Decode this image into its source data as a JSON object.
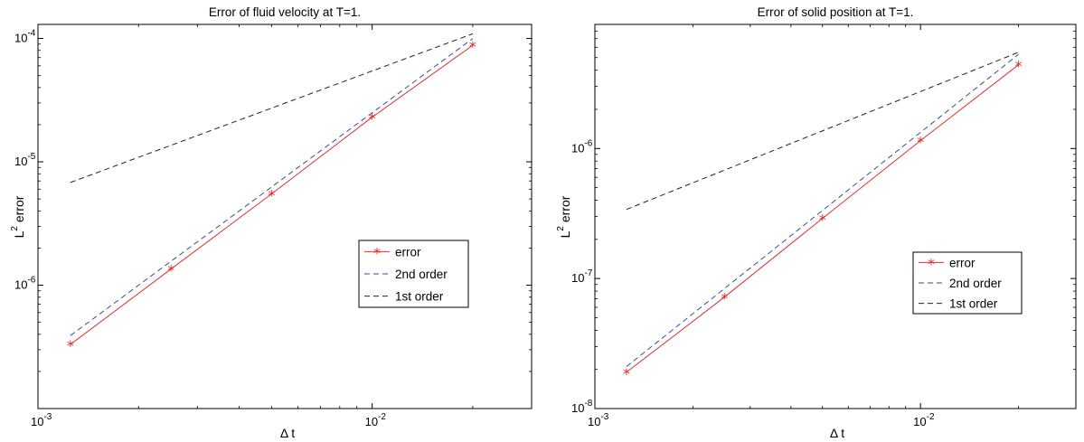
{
  "chart_data": [
    {
      "type": "line",
      "title": "Error of fluid velocity at T=1.",
      "xlabel": "Δ t",
      "ylabel": "L2 error",
      "ylabel_base": "L",
      "ylabel_sup": "2",
      "ylabel_rest": " error",
      "xscale": "log",
      "yscale": "log",
      "xlim": [
        0.001,
        0.03
      ],
      "ylim": [
        1e-07,
        0.00013
      ],
      "grid": false,
      "legend_position": "center-right",
      "xticks": [
        {
          "value": 0.001,
          "base": "10",
          "exp": "-3"
        },
        {
          "value": 0.01,
          "base": "10",
          "exp": "-2"
        }
      ],
      "yticks": [
        {
          "value": 1e-06,
          "base": "10",
          "exp": "-6"
        },
        {
          "value": 1e-05,
          "base": "10",
          "exp": "-5"
        },
        {
          "value": 0.0001,
          "base": "10",
          "exp": "-4"
        }
      ],
      "series": [
        {
          "name": "error",
          "color": "#e03030",
          "style": "solid",
          "marker": "*",
          "x": [
            0.00125,
            0.0025,
            0.005,
            0.01,
            0.02
          ],
          "y": [
            3.3e-07,
            1.35e-06,
            5.5e-06,
            2.3e-05,
            8.8e-05
          ]
        },
        {
          "name": "2nd order",
          "color": "#3a4a9a",
          "style": "dashed",
          "marker": "",
          "x": [
            0.00125,
            0.02
          ],
          "y": [
            3.9e-07,
            0.0001
          ]
        },
        {
          "name": "1st order",
          "color": "#222222",
          "style": "dashed",
          "marker": "",
          "x": [
            0.00125,
            0.02
          ],
          "y": [
            6.8e-06,
            0.000109
          ]
        }
      ]
    },
    {
      "type": "line",
      "title": "Error of solid position at T=1.",
      "xlabel": "Δ t",
      "ylabel": "L2 error",
      "ylabel_base": "L",
      "ylabel_sup": "2",
      "ylabel_rest": " error",
      "xscale": "log",
      "yscale": "log",
      "xlim": [
        0.001,
        0.03
      ],
      "ylim": [
        1e-08,
        9e-06
      ],
      "grid": false,
      "legend_position": "center-right",
      "xticks": [
        {
          "value": 0.001,
          "base": "10",
          "exp": "-3"
        },
        {
          "value": 0.01,
          "base": "10",
          "exp": "-2"
        }
      ],
      "yticks": [
        {
          "value": 1e-08,
          "base": "10",
          "exp": "-8"
        },
        {
          "value": 1e-07,
          "base": "10",
          "exp": "-7"
        },
        {
          "value": 1e-06,
          "base": "10",
          "exp": "-6"
        }
      ],
      "series": [
        {
          "name": "error",
          "color": "#e03030",
          "style": "solid",
          "marker": "*",
          "x": [
            0.00125,
            0.0025,
            0.005,
            0.01,
            0.02
          ],
          "y": [
            1.9e-08,
            7.2e-08,
            2.9e-07,
            1.15e-06,
            4.4e-06
          ]
        },
        {
          "name": "2nd order",
          "color": "#3a4a9a",
          "style": "dashed",
          "marker": "",
          "x": [
            0.00125,
            0.02
          ],
          "y": [
            2.1e-08,
            5.3e-06
          ]
        },
        {
          "name": "1st order",
          "color": "#222222",
          "style": "dashed",
          "marker": "",
          "x": [
            0.00125,
            0.02
          ],
          "y": [
            3.4e-07,
            5.5e-06
          ]
        }
      ]
    }
  ]
}
